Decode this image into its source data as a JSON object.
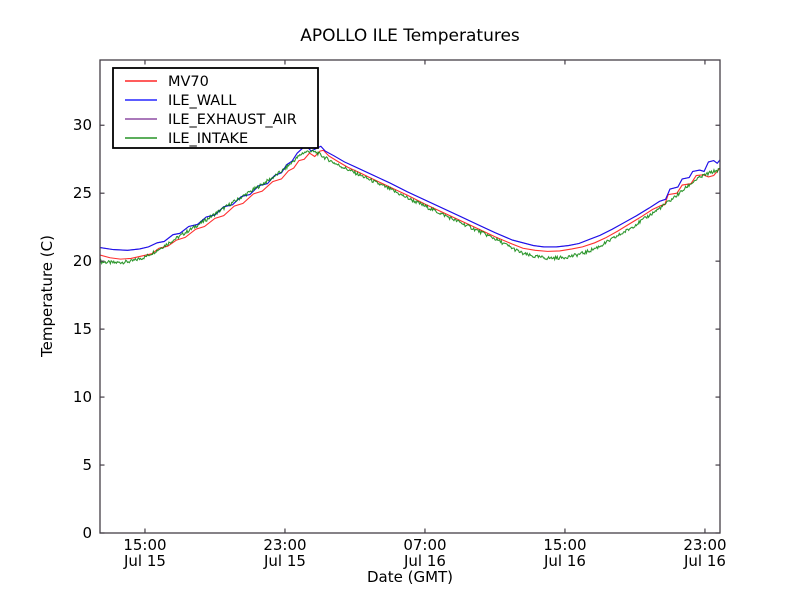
{
  "chart_data": {
    "type": "line",
    "title": "APOLLO ILE Temperatures",
    "xlabel": "Date (GMT)",
    "ylabel": "Temperature (C)",
    "grid": false,
    "legend_position": "upper left",
    "x_domain_hours": [
      12.43,
      47.86
    ],
    "ylim": [
      0,
      34.8
    ],
    "yticks": [
      0,
      5,
      10,
      15,
      20,
      25,
      30
    ],
    "ytick_labels": [
      "0",
      "5",
      "10",
      "15",
      "20",
      "25",
      "30"
    ],
    "xticks": [
      {
        "hour": 15,
        "time": "15:00",
        "date": "Jul 15"
      },
      {
        "hour": 23,
        "time": "23:00",
        "date": "Jul 15"
      },
      {
        "hour": 31,
        "time": "07:00",
        "date": "Jul 16"
      },
      {
        "hour": 39,
        "time": "15:00",
        "date": "Jul 16"
      },
      {
        "hour": 47,
        "time": "23:00",
        "date": "Jul 16"
      }
    ],
    "axis_color": "#443e46",
    "text_color": "#000000",
    "series": [
      {
        "name": "MV70",
        "color": "#ff0000",
        "zorder": 1,
        "points": [
          [
            12.43,
            20.45
          ],
          [
            13.0,
            20.25
          ],
          [
            13.6,
            20.15
          ],
          [
            14.2,
            20.2
          ],
          [
            14.9,
            20.4
          ],
          [
            15.4,
            20.55
          ],
          [
            15.8,
            20.95
          ],
          [
            16.3,
            21.1
          ],
          [
            16.8,
            21.55
          ],
          [
            17.3,
            21.75
          ],
          [
            17.9,
            22.35
          ],
          [
            18.4,
            22.55
          ],
          [
            19.0,
            23.15
          ],
          [
            19.5,
            23.35
          ],
          [
            20.1,
            24.05
          ],
          [
            20.6,
            24.25
          ],
          [
            21.2,
            24.95
          ],
          [
            21.7,
            25.15
          ],
          [
            22.3,
            25.85
          ],
          [
            22.8,
            26.05
          ],
          [
            23.2,
            26.65
          ],
          [
            23.5,
            26.85
          ],
          [
            23.8,
            27.4
          ],
          [
            24.1,
            27.5
          ],
          [
            24.4,
            27.95
          ],
          [
            24.7,
            27.7
          ],
          [
            25.0,
            28.1
          ],
          [
            25.2,
            28.15
          ],
          [
            25.5,
            27.75
          ],
          [
            26.0,
            27.35
          ],
          [
            26.6,
            26.9
          ],
          [
            27.2,
            26.55
          ],
          [
            28.0,
            26.05
          ],
          [
            29.0,
            25.45
          ],
          [
            30.0,
            24.85
          ],
          [
            31.0,
            24.2
          ],
          [
            32.0,
            23.6
          ],
          [
            33.0,
            23.0
          ],
          [
            34.0,
            22.4
          ],
          [
            35.0,
            21.8
          ],
          [
            36.0,
            21.25
          ],
          [
            36.6,
            20.95
          ],
          [
            37.3,
            20.8
          ],
          [
            38.0,
            20.72
          ],
          [
            38.7,
            20.75
          ],
          [
            39.4,
            20.9
          ],
          [
            40.0,
            21.05
          ],
          [
            40.7,
            21.35
          ],
          [
            41.3,
            21.7
          ],
          [
            42.0,
            22.2
          ],
          [
            42.7,
            22.75
          ],
          [
            43.4,
            23.3
          ],
          [
            44.0,
            23.8
          ],
          [
            44.5,
            24.1
          ],
          [
            44.7,
            24.15
          ],
          [
            44.9,
            24.9
          ],
          [
            45.4,
            25.0
          ],
          [
            45.7,
            25.6
          ],
          [
            46.2,
            25.7
          ],
          [
            46.5,
            26.3
          ],
          [
            46.9,
            26.35
          ],
          [
            47.2,
            26.2
          ],
          [
            47.5,
            26.3
          ],
          [
            47.7,
            26.6
          ],
          [
            47.86,
            26.85
          ]
        ]
      },
      {
        "name": "ILE_WALL",
        "color": "#0000ff",
        "zorder": 3,
        "points": [
          [
            12.43,
            21.0
          ],
          [
            13.2,
            20.85
          ],
          [
            14.0,
            20.8
          ],
          [
            14.7,
            20.9
          ],
          [
            15.2,
            21.05
          ],
          [
            15.7,
            21.35
          ],
          [
            16.1,
            21.45
          ],
          [
            16.6,
            21.95
          ],
          [
            17.0,
            22.05
          ],
          [
            17.5,
            22.55
          ],
          [
            18.0,
            22.7
          ],
          [
            18.5,
            23.25
          ],
          [
            19.0,
            23.4
          ],
          [
            19.5,
            24.0
          ],
          [
            20.0,
            24.15
          ],
          [
            20.5,
            24.75
          ],
          [
            21.0,
            24.9
          ],
          [
            21.5,
            25.55
          ],
          [
            22.0,
            25.7
          ],
          [
            22.4,
            26.3
          ],
          [
            22.8,
            26.5
          ],
          [
            23.1,
            27.1
          ],
          [
            23.4,
            27.35
          ],
          [
            23.7,
            27.95
          ],
          [
            24.0,
            28.3
          ],
          [
            24.2,
            28.5
          ],
          [
            24.5,
            28.1
          ],
          [
            24.8,
            28.3
          ],
          [
            25.05,
            28.45
          ],
          [
            25.3,
            28.1
          ],
          [
            25.8,
            27.75
          ],
          [
            26.4,
            27.3
          ],
          [
            27.0,
            26.95
          ],
          [
            28.0,
            26.35
          ],
          [
            29.0,
            25.75
          ],
          [
            30.0,
            25.1
          ],
          [
            31.0,
            24.5
          ],
          [
            32.0,
            23.9
          ],
          [
            33.0,
            23.3
          ],
          [
            34.0,
            22.7
          ],
          [
            35.0,
            22.1
          ],
          [
            36.0,
            21.55
          ],
          [
            36.6,
            21.35
          ],
          [
            37.2,
            21.15
          ],
          [
            37.8,
            21.05
          ],
          [
            38.5,
            21.05
          ],
          [
            39.2,
            21.15
          ],
          [
            39.8,
            21.3
          ],
          [
            40.4,
            21.6
          ],
          [
            41.0,
            21.9
          ],
          [
            41.7,
            22.35
          ],
          [
            42.4,
            22.85
          ],
          [
            43.1,
            23.35
          ],
          [
            43.8,
            23.9
          ],
          [
            44.4,
            24.4
          ],
          [
            44.75,
            24.55
          ],
          [
            45.0,
            25.3
          ],
          [
            45.45,
            25.45
          ],
          [
            45.7,
            26.05
          ],
          [
            46.1,
            26.15
          ],
          [
            46.3,
            26.6
          ],
          [
            46.7,
            26.7
          ],
          [
            46.95,
            26.6
          ],
          [
            47.2,
            27.3
          ],
          [
            47.5,
            27.4
          ],
          [
            47.7,
            27.2
          ],
          [
            47.86,
            27.45
          ]
        ]
      },
      {
        "name": "ILE_EXHAUST_AIR",
        "color": "#7b2e94",
        "zorder": 2,
        "note_visible": "overlaps ILE_WALL line in plot",
        "points": [
          [
            12.43,
            21.0
          ],
          [
            13.2,
            20.85
          ],
          [
            14.0,
            20.8
          ],
          [
            14.7,
            20.9
          ],
          [
            15.2,
            21.05
          ],
          [
            15.7,
            21.35
          ],
          [
            16.1,
            21.45
          ],
          [
            16.6,
            21.95
          ],
          [
            17.0,
            22.05
          ],
          [
            17.5,
            22.55
          ],
          [
            18.0,
            22.7
          ],
          [
            18.5,
            23.25
          ],
          [
            19.0,
            23.4
          ],
          [
            19.5,
            24.0
          ],
          [
            20.0,
            24.15
          ],
          [
            20.5,
            24.75
          ],
          [
            21.0,
            24.9
          ],
          [
            21.5,
            25.55
          ],
          [
            22.0,
            25.7
          ],
          [
            22.4,
            26.3
          ],
          [
            22.8,
            26.5
          ],
          [
            23.1,
            27.1
          ],
          [
            23.4,
            27.35
          ],
          [
            23.7,
            27.95
          ],
          [
            24.0,
            28.3
          ],
          [
            24.2,
            28.5
          ],
          [
            24.5,
            28.1
          ],
          [
            24.8,
            28.3
          ],
          [
            25.05,
            28.45
          ],
          [
            25.3,
            28.1
          ],
          [
            25.8,
            27.75
          ],
          [
            26.4,
            27.3
          ],
          [
            27.0,
            26.95
          ],
          [
            28.0,
            26.35
          ],
          [
            29.0,
            25.75
          ],
          [
            30.0,
            25.1
          ],
          [
            31.0,
            24.5
          ],
          [
            32.0,
            23.9
          ],
          [
            33.0,
            23.3
          ],
          [
            34.0,
            22.7
          ],
          [
            35.0,
            22.1
          ],
          [
            36.0,
            21.55
          ],
          [
            36.6,
            21.35
          ],
          [
            37.2,
            21.15
          ],
          [
            37.8,
            21.05
          ],
          [
            38.5,
            21.05
          ],
          [
            39.2,
            21.15
          ],
          [
            39.8,
            21.3
          ],
          [
            40.4,
            21.6
          ],
          [
            41.0,
            21.9
          ],
          [
            41.7,
            22.35
          ],
          [
            42.4,
            22.85
          ],
          [
            43.1,
            23.35
          ],
          [
            43.8,
            23.9
          ],
          [
            44.4,
            24.4
          ],
          [
            44.75,
            24.55
          ],
          [
            45.0,
            25.3
          ],
          [
            45.45,
            25.45
          ],
          [
            45.7,
            26.05
          ],
          [
            46.1,
            26.15
          ],
          [
            46.3,
            26.6
          ],
          [
            46.7,
            26.7
          ],
          [
            46.95,
            26.6
          ],
          [
            47.2,
            27.3
          ],
          [
            47.5,
            27.4
          ],
          [
            47.7,
            27.2
          ],
          [
            47.86,
            27.45
          ]
        ]
      },
      {
        "name": "ILE_INTAKE",
        "color": "#008000",
        "zorder": 4,
        "noise_amplitude": 0.13,
        "points": [
          [
            12.43,
            19.95
          ],
          [
            13.3,
            19.88
          ],
          [
            14.2,
            19.98
          ],
          [
            15.0,
            20.3
          ],
          [
            15.7,
            20.8
          ],
          [
            16.5,
            21.45
          ],
          [
            17.5,
            22.25
          ],
          [
            18.5,
            23.05
          ],
          [
            19.5,
            23.9
          ],
          [
            20.5,
            24.7
          ],
          [
            21.5,
            25.5
          ],
          [
            22.3,
            26.15
          ],
          [
            23.0,
            26.8
          ],
          [
            23.6,
            27.5
          ],
          [
            24.0,
            27.95
          ],
          [
            24.4,
            28.1
          ],
          [
            24.8,
            28.0
          ],
          [
            25.3,
            27.6
          ],
          [
            26.0,
            27.1
          ],
          [
            27.0,
            26.5
          ],
          [
            28.0,
            25.9
          ],
          [
            29.0,
            25.3
          ],
          [
            30.0,
            24.65
          ],
          [
            31.0,
            24.05
          ],
          [
            32.0,
            23.45
          ],
          [
            33.0,
            22.85
          ],
          [
            34.0,
            22.25
          ],
          [
            35.0,
            21.65
          ],
          [
            36.0,
            20.95
          ],
          [
            36.6,
            20.55
          ],
          [
            37.2,
            20.35
          ],
          [
            38.0,
            20.22
          ],
          [
            38.8,
            20.25
          ],
          [
            39.5,
            20.4
          ],
          [
            40.2,
            20.65
          ],
          [
            41.0,
            21.1
          ],
          [
            41.8,
            21.7
          ],
          [
            42.6,
            22.3
          ],
          [
            43.4,
            23.0
          ],
          [
            44.2,
            23.7
          ],
          [
            44.9,
            24.35
          ],
          [
            45.5,
            24.95
          ],
          [
            46.0,
            25.5
          ],
          [
            46.5,
            26.0
          ],
          [
            47.0,
            26.35
          ],
          [
            47.4,
            26.55
          ],
          [
            47.86,
            26.75
          ]
        ]
      }
    ],
    "legend_labels": [
      "MV70",
      "ILE_WALL",
      "ILE_EXHAUST_AIR",
      "ILE_INTAKE"
    ]
  }
}
